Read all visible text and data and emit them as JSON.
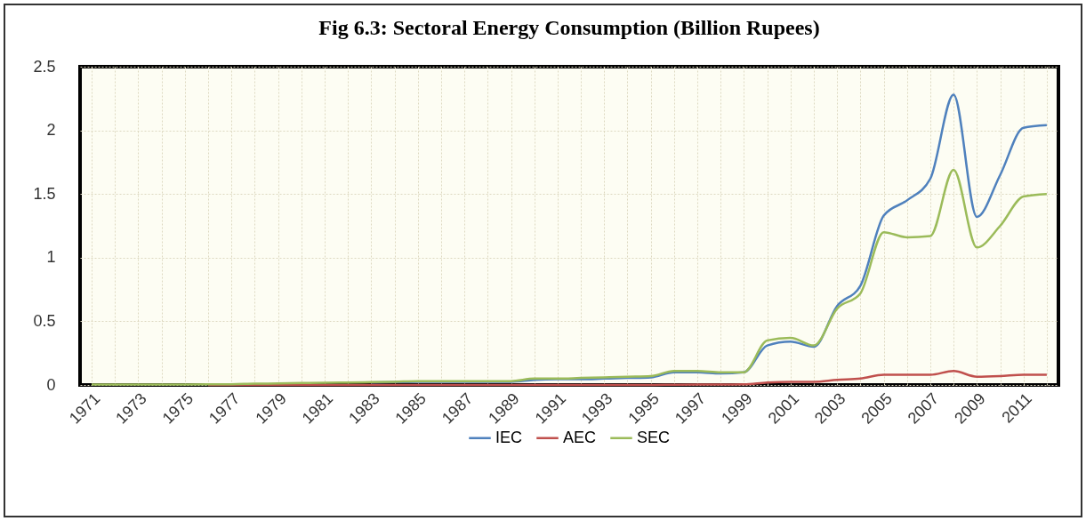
{
  "chart_data": {
    "type": "line",
    "title": "Fig 6.3: Sectoral Energy Consumption (Billion Rupees)",
    "categories": [
      "1971",
      null,
      "1973",
      null,
      "1975",
      null,
      "1977",
      null,
      "1979",
      null,
      "1981",
      null,
      "1983",
      null,
      "1985",
      null,
      "1987",
      null,
      "1989",
      null,
      "1991",
      null,
      "1993",
      null,
      "1995",
      null,
      "1997",
      null,
      "1999",
      null,
      "2001",
      null,
      "2003",
      null,
      "2005",
      null,
      "2007",
      null,
      "2009",
      null,
      "2011",
      null
    ],
    "series": [
      {
        "name": "IEC",
        "color": "#4f81bd",
        "values": [
          null,
          null,
          null,
          null,
          null,
          null,
          null,
          null,
          null,
          null,
          null,
          null,
          0.02,
          0.022,
          0.025,
          0.025,
          0.025,
          0.025,
          0.025,
          0.04,
          0.045,
          0.045,
          0.05,
          0.055,
          0.06,
          0.1,
          0.1,
          0.09,
          0.1,
          0.31,
          0.34,
          0.3,
          0.62,
          0.78,
          1.33,
          1.45,
          1.62,
          2.28,
          1.32,
          1.65,
          2.02,
          2.04
        ]
      },
      {
        "name": "AEC",
        "color": "#c0504d",
        "values": [
          null,
          null,
          null,
          null,
          null,
          0,
          0,
          0,
          0,
          0,
          0,
          0,
          0,
          0,
          0,
          0,
          0,
          0,
          0,
          0,
          0,
          0,
          0,
          0,
          0,
          0.002,
          0.003,
          0.003,
          0.005,
          0.02,
          0.025,
          0.025,
          0.04,
          0.05,
          0.08,
          0.08,
          0.08,
          0.11,
          0.065,
          0.07,
          0.08,
          0.08
        ]
      },
      {
        "name": "SEC",
        "color": "#9bbb59",
        "values": [
          0.003,
          0.003,
          0.003,
          0.004,
          0.004,
          0.005,
          0.006,
          0.01,
          0.012,
          0.015,
          0.018,
          0.02,
          0.022,
          0.025,
          0.03,
          0.03,
          0.03,
          0.03,
          0.03,
          0.05,
          0.05,
          0.055,
          0.06,
          0.065,
          0.07,
          0.11,
          0.11,
          0.1,
          0.1,
          0.35,
          0.37,
          0.31,
          0.6,
          0.72,
          1.2,
          1.16,
          1.17,
          1.69,
          1.08,
          1.25,
          1.48,
          1.5
        ]
      }
    ],
    "ylim": [
      0,
      2.5
    ],
    "yticks": [
      0,
      0.5,
      1,
      1.5,
      2,
      2.5
    ],
    "grid": true,
    "legend": "bottom",
    "line_style": "solid"
  }
}
